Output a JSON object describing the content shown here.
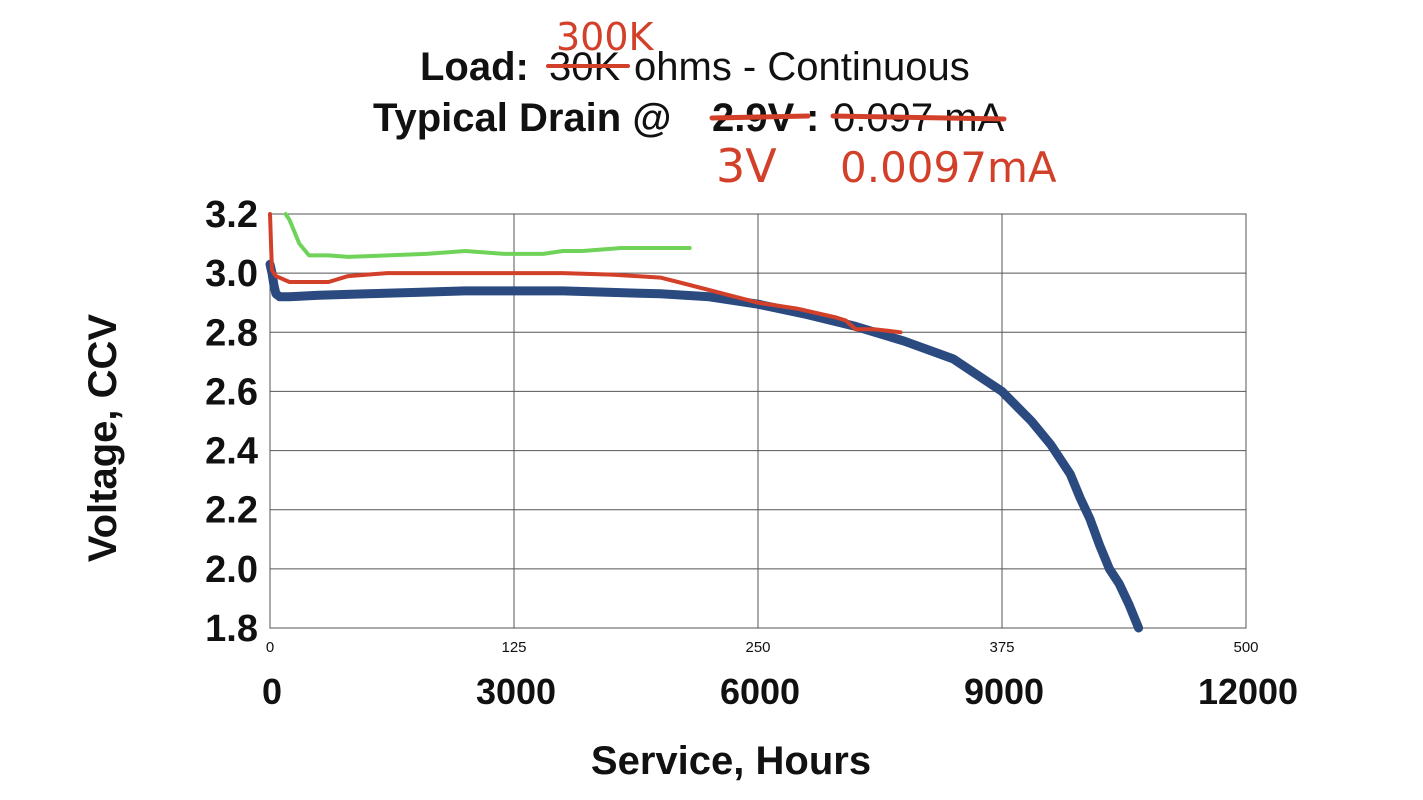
{
  "chart_data": {
    "type": "line",
    "title": {
      "load_label": "Load:",
      "load_value_struck": "30K",
      "load_value_handwritten": "300K",
      "load_rest": "ohms - Continuous",
      "drain_label": "Typical Drain @",
      "drain_voltage_struck": "2.9V",
      "drain_colon": ":",
      "drain_value_struck": "0.097 mA",
      "drain_voltage_handwritten": "3V",
      "drain_value_handwritten": "0.0097mA"
    },
    "ylabel": "Voltage, CCV",
    "xlabel": "Service, Hours",
    "ylim": [
      1.8,
      3.2
    ],
    "xlim": [
      0,
      500
    ],
    "y_ticks": [
      "3.2",
      "3.0",
      "2.8",
      "2.6",
      "2.4",
      "2.2",
      "2.0",
      "1.8"
    ],
    "y_tick_values": [
      3.2,
      3.0,
      2.8,
      2.6,
      2.4,
      2.2,
      2.0,
      1.8
    ],
    "x_ticks_original": [
      "0",
      "125",
      "250",
      "375",
      "500"
    ],
    "x_ticks_original_values": [
      0,
      125,
      250,
      375,
      500
    ],
    "x_ticks_handwritten": [
      "0",
      "3000",
      "6000",
      "9000",
      "12000"
    ],
    "grid": true,
    "series": [
      {
        "color": "#2b4a80",
        "x": [
          0,
          1,
          2,
          3,
          5,
          10,
          25,
          50,
          75,
          100,
          125,
          150,
          175,
          200,
          225,
          250,
          275,
          300,
          325,
          350,
          375,
          390,
          400,
          410,
          415,
          420,
          425,
          430,
          435,
          440,
          445
        ],
        "y": [
          3.03,
          3.0,
          2.96,
          2.93,
          2.92,
          2.92,
          2.925,
          2.93,
          2.935,
          2.94,
          2.94,
          2.94,
          2.935,
          2.93,
          2.92,
          2.895,
          2.86,
          2.82,
          2.77,
          2.71,
          2.6,
          2.5,
          2.42,
          2.32,
          2.24,
          2.17,
          2.08,
          2.0,
          1.95,
          1.88,
          1.8
        ]
      },
      {
        "color": "#d2402a",
        "x": [
          0,
          0.5,
          1,
          3,
          10,
          30,
          40,
          60,
          70,
          100,
          150,
          175,
          200,
          215,
          250,
          270,
          290,
          295,
          300,
          310,
          323
        ],
        "y": [
          3.2,
          3.1,
          3.01,
          2.99,
          2.97,
          2.97,
          2.99,
          3.0,
          3.0,
          3.0,
          3.0,
          2.995,
          2.985,
          2.96,
          2.9,
          2.88,
          2.85,
          2.84,
          2.81,
          2.81,
          2.8
        ]
      },
      {
        "color": "#6fd35a",
        "x": [
          8,
          10,
          15,
          20,
          30,
          40,
          60,
          80,
          100,
          120,
          140,
          150,
          160,
          180,
          200,
          215
        ],
        "y": [
          3.2,
          3.18,
          3.1,
          3.06,
          3.06,
          3.055,
          3.06,
          3.065,
          3.075,
          3.065,
          3.065,
          3.075,
          3.075,
          3.085,
          3.085,
          3.085
        ]
      }
    ]
  }
}
